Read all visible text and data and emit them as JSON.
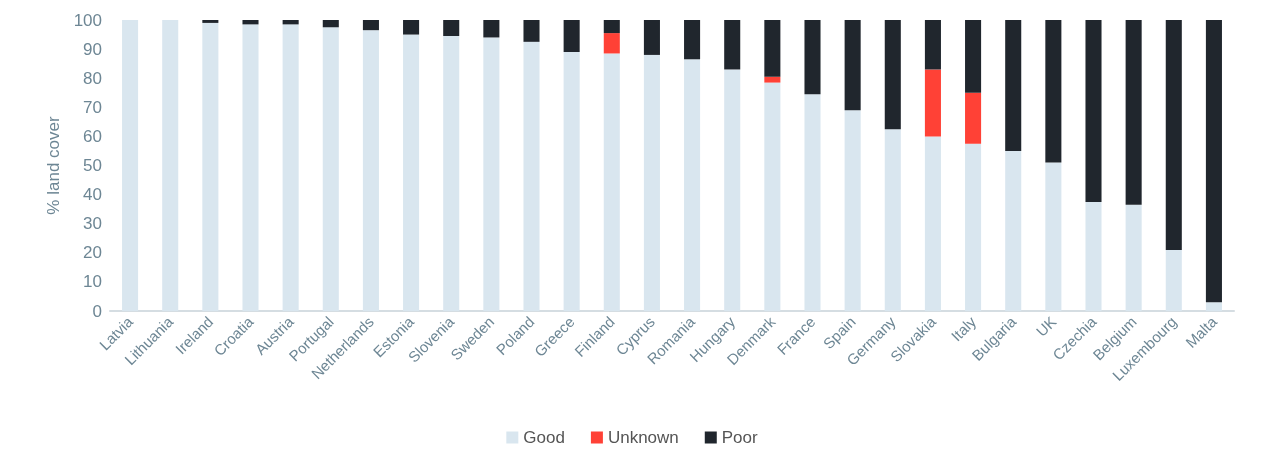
{
  "chart_data": {
    "type": "bar",
    "stacked": true,
    "ylabel": "% land cover",
    "ylim": [
      0,
      100
    ],
    "yticks": [
      0,
      10,
      20,
      30,
      40,
      50,
      60,
      70,
      80,
      90,
      100
    ],
    "grid": false,
    "legend": "bottom",
    "categories": [
      "Latvia",
      "Lithuania",
      "Ireland",
      "Croatia",
      "Austria",
      "Portugal",
      "Netherlands",
      "Estonia",
      "Slovenia",
      "Sweden",
      "Poland",
      "Greece",
      "Finland",
      "Cyprus",
      "Romania",
      "Hungary",
      "Denmark",
      "France",
      "Spain",
      "Germany",
      "Slovakia",
      "Italy",
      "Bulgaria",
      "UK",
      "Czechia",
      "Belgium",
      "Luxembourg",
      "Malta"
    ],
    "series": [
      {
        "name": "Good",
        "color": "#d9e6ef",
        "values": [
          100,
          100,
          99,
          98.5,
          98.5,
          97.5,
          96.5,
          95,
          94.5,
          94,
          92.5,
          89,
          88.5,
          88,
          86.5,
          83,
          78.5,
          74.5,
          69,
          62.5,
          60,
          57.5,
          55,
          51,
          37.5,
          36.5,
          21,
          3
        ]
      },
      {
        "name": "Unknown",
        "color": "#ff4136",
        "values": [
          0,
          0,
          0,
          0,
          0,
          0,
          0,
          0,
          0,
          0,
          0,
          0,
          7,
          0,
          0,
          0,
          2,
          0,
          0,
          0,
          23,
          17.5,
          0,
          0,
          0,
          0,
          0,
          0
        ]
      },
      {
        "name": "Poor",
        "color": "#20262d",
        "values": [
          0,
          0,
          1,
          1.5,
          1.5,
          2.5,
          3.5,
          5,
          5.5,
          6,
          7.5,
          11,
          4.5,
          12,
          13.5,
          17,
          19.5,
          25.5,
          31,
          37.5,
          17,
          25,
          45,
          49,
          62.5,
          63.5,
          79,
          97
        ]
      }
    ]
  }
}
